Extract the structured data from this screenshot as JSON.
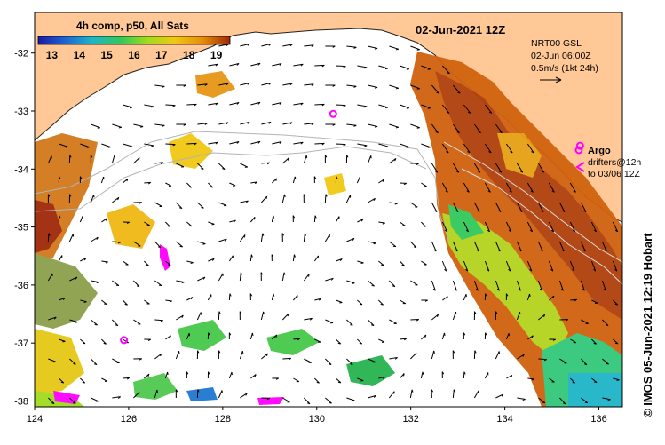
{
  "map": {
    "date_title": "02-Jun-2021 12Z",
    "colorbar": {
      "title": "4h comp, p50, All Sats",
      "tick_labels": [
        "13",
        "14",
        "15",
        "16",
        "17",
        "18",
        "19"
      ],
      "min": 12.5,
      "max": 19.5
    },
    "current_info": {
      "line1": "NRT00 GSL",
      "line2": "02-Jun 06:00Z",
      "line3": "0.5m/s (1kt 24h)"
    },
    "legend": {
      "argo_label": "Argo",
      "drifters_line1": "drifters@12h",
      "drifters_line2": "to 03/06 12Z",
      "argo_color": "#ff00ff",
      "land_color": "#ffc896"
    },
    "credit": "© IMOS 05-Jun-2021 12:19 Hobart",
    "x_ticks": [
      {
        "value": 124,
        "label": "124"
      },
      {
        "value": 126,
        "label": "126"
      },
      {
        "value": 128,
        "label": "128"
      },
      {
        "value": 130,
        "label": "130"
      },
      {
        "value": 132,
        "label": "132"
      },
      {
        "value": 134,
        "label": "134"
      },
      {
        "value": 136,
        "label": "136"
      }
    ],
    "y_ticks": [
      {
        "value": -32,
        "label": "-32"
      },
      {
        "value": -33,
        "label": "-33"
      },
      {
        "value": -34,
        "label": "-34"
      },
      {
        "value": -35,
        "label": "-35"
      },
      {
        "value": -36,
        "label": "-36"
      },
      {
        "value": -37,
        "label": "-37"
      },
      {
        "value": -38,
        "label": "-38"
      }
    ],
    "lon_range": [
      124,
      136.5
    ],
    "lat_range": [
      -38.1,
      -31.3
    ],
    "argo_floats": [
      {
        "lon": 125.9,
        "lat": -36.95
      },
      {
        "lon": 130.35,
        "lat": -33.05
      },
      {
        "lon": 135.6,
        "lat": -33.6
      }
    ]
  }
}
